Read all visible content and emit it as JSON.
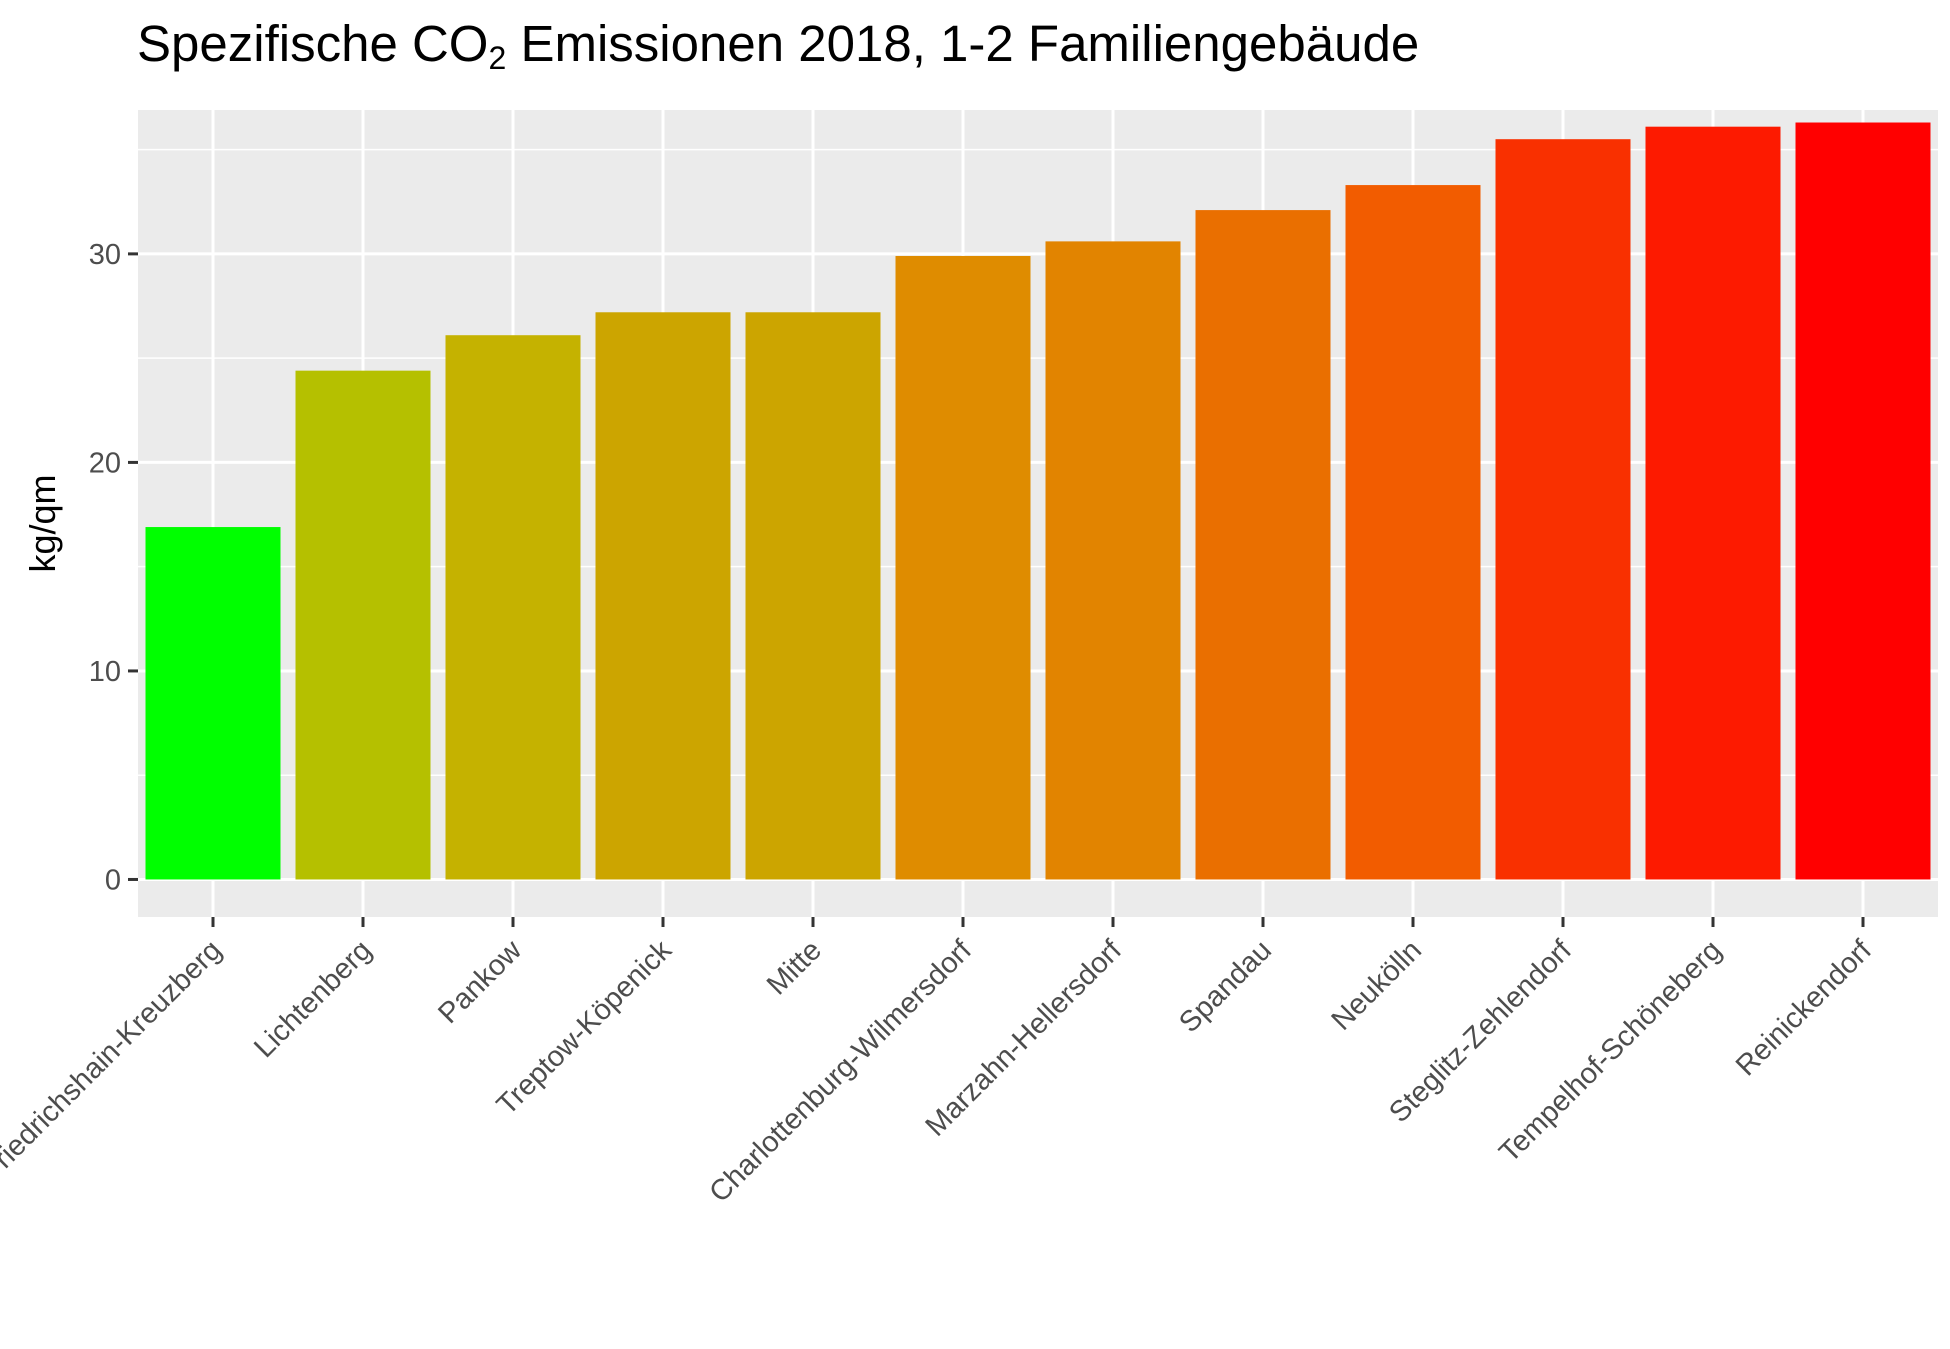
{
  "chart_data": {
    "type": "bar",
    "title_prefix": "Spezifische CO",
    "title_subscript": "2",
    "title_suffix": " Emissionen 2018, 1-2 Familiengebäude",
    "xlabel": "",
    "ylabel": "kg/qm",
    "ylim": [
      -1.8,
      36.9
    ],
    "yticks": [
      0,
      10,
      20,
      30
    ],
    "ytick_labels": [
      "0",
      "10",
      "20",
      "30"
    ],
    "grid": true,
    "legend": "none",
    "categories": [
      "Friedrichshain-Kreuzberg",
      "Lichtenberg",
      "Pankow",
      "Treptow-Köpenick",
      "Mitte",
      "Charlottenburg-Wilmersdorf",
      "Marzahn-Hellersdorf",
      "Spandau",
      "Neukölln",
      "Steglitz-Zehlendorf",
      "Tempelhof-Schöneberg",
      "Reinickendorf"
    ],
    "values": [
      16.9,
      24.4,
      26.1,
      27.2,
      27.2,
      29.9,
      30.6,
      32.1,
      33.3,
      35.5,
      36.1,
      36.3
    ],
    "colors": [
      "#00ff00",
      "#b5c000",
      "#c5b200",
      "#cca500",
      "#cca500",
      "#df8c00",
      "#e28400",
      "#ea6f00",
      "#f25c00",
      "#f93000",
      "#fd1a00",
      "#ff0000"
    ]
  }
}
